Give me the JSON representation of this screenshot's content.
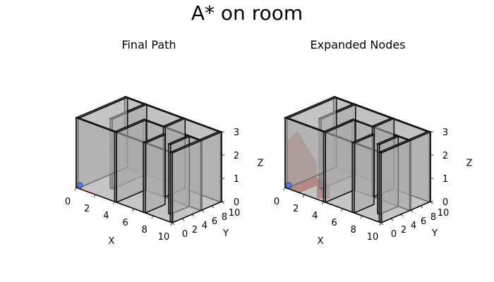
{
  "figure": {
    "suptitle": "A* on room"
  },
  "chart_data": [
    {
      "type": "3d-scene",
      "title": "Final Path",
      "xlabel": "X",
      "ylabel": "Y",
      "zlabel": "Z",
      "xlim": [
        0,
        10
      ],
      "ylim": [
        0,
        10
      ],
      "zlim": [
        0,
        3
      ],
      "xticks": [
        "0",
        "2",
        "4",
        "6",
        "8",
        "10"
      ],
      "yticks": [
        "0",
        "2",
        "4",
        "6",
        "8",
        "10"
      ],
      "zticks": [
        "0",
        "1",
        "2",
        "3"
      ],
      "grid": true,
      "start": {
        "x": 0,
        "y": 0,
        "z": 0,
        "color": "#4169e1"
      },
      "path": {
        "color": "#cc2222",
        "points": [
          [
            0,
            0,
            0
          ],
          [
            2,
            0,
            0
          ]
        ]
      },
      "expanded_nodes": []
    },
    {
      "type": "3d-scene",
      "title": "Expanded Nodes",
      "xlabel": "X",
      "ylabel": "Y",
      "zlabel": "Z",
      "xlim": [
        0,
        10
      ],
      "ylim": [
        0,
        10
      ],
      "zlim": [
        0,
        3
      ],
      "xticks": [
        "0",
        "2",
        "4",
        "6",
        "8",
        "10"
      ],
      "yticks": [
        "0",
        "2",
        "4",
        "6",
        "8",
        "10"
      ],
      "zticks": [
        "0",
        "1",
        "2",
        "3"
      ],
      "grid": true,
      "start": {
        "x": 0,
        "y": 0,
        "z": 0,
        "color": "#4169e1"
      },
      "expanded_nodes_color": "#c0392b",
      "expanded_region": {
        "x": [
          0.3,
          1.5
        ],
        "y": [
          0,
          3.5
        ],
        "z": [
          0,
          2.3
        ]
      }
    }
  ],
  "walls": [
    {
      "x": [
        0,
        0.2
      ],
      "y": [
        0,
        10
      ],
      "z": [
        0,
        3
      ]
    },
    {
      "x": [
        0,
        10
      ],
      "y": [
        9.8,
        10
      ],
      "z": [
        0,
        3
      ]
    },
    {
      "x": [
        9.8,
        10
      ],
      "y": [
        0,
        10
      ],
      "z": [
        0,
        3
      ]
    },
    {
      "x": [
        0,
        10
      ],
      "y": [
        0,
        0.2
      ],
      "z": [
        0,
        3
      ]
    },
    {
      "x": [
        4,
        4.2
      ],
      "y": [
        0,
        6
      ],
      "z": [
        0,
        3
      ]
    },
    {
      "x": [
        4,
        10
      ],
      "y": [
        5.8,
        6
      ],
      "z": [
        0,
        3
      ]
    },
    {
      "x": [
        2,
        2.2
      ],
      "y": [
        3,
        10
      ],
      "z": [
        0,
        3
      ]
    },
    {
      "x": [
        6,
        6.2
      ],
      "y": [
        6,
        10
      ],
      "z": [
        0,
        3
      ]
    },
    {
      "x": [
        7,
        7.2
      ],
      "y": [
        0,
        4
      ],
      "z": [
        0,
        3
      ]
    },
    {
      "x": [
        8.6,
        8.8
      ],
      "y": [
        2,
        5.8
      ],
      "z": [
        0,
        3
      ]
    }
  ]
}
